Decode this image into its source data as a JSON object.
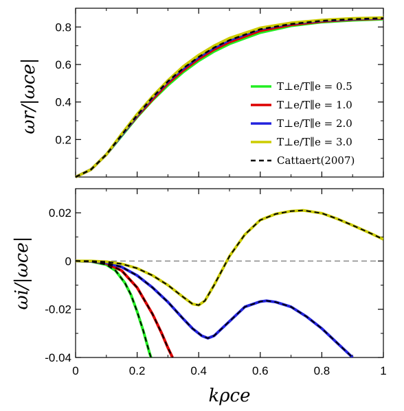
{
  "chart_data": [
    {
      "type": "line",
      "panel": "top",
      "title": "",
      "xlabel": "",
      "ylabel": "ωr/|ωce|",
      "xlim": [
        0,
        1
      ],
      "ylim": [
        0,
        0.9
      ],
      "yticks": [
        0.2,
        0.4,
        0.6,
        0.8
      ],
      "ytick_labels": [
        "0.2",
        "0.4",
        "0.6",
        "0.8"
      ],
      "x": [
        0,
        0.05,
        0.1,
        0.15,
        0.2,
        0.25,
        0.3,
        0.35,
        0.4,
        0.45,
        0.5,
        0.6,
        0.7,
        0.8,
        0.9,
        1.0
      ],
      "series": [
        {
          "name": "T⊥e/T∥e = 0.5",
          "color": "#22ee22",
          "values": [
            0,
            0.04,
            0.12,
            0.22,
            0.32,
            0.41,
            0.49,
            0.56,
            0.62,
            0.67,
            0.71,
            0.77,
            0.806,
            0.826,
            0.836,
            0.842
          ]
        },
        {
          "name": "T⊥e/T∥e = 1.0",
          "color": "#dd0000",
          "values": [
            0,
            0.04,
            0.12,
            0.225,
            0.325,
            0.415,
            0.5,
            0.57,
            0.63,
            0.68,
            0.72,
            0.78,
            0.812,
            0.83,
            0.84,
            0.845
          ]
        },
        {
          "name": "T⊥e/T∥e = 2.0",
          "color": "#2222dd",
          "values": [
            0,
            0.04,
            0.12,
            0.225,
            0.33,
            0.425,
            0.51,
            0.58,
            0.64,
            0.69,
            0.73,
            0.79,
            0.818,
            0.834,
            0.843,
            0.848
          ]
        },
        {
          "name": "T⊥e/T∥e = 3.0",
          "color": "#cccc00",
          "values": [
            0,
            0.04,
            0.12,
            0.23,
            0.335,
            0.43,
            0.515,
            0.59,
            0.65,
            0.7,
            0.74,
            0.795,
            0.822,
            0.837,
            0.846,
            0.85
          ]
        },
        {
          "name": "Cattaert(2007)",
          "color": "#000000",
          "dashed": true,
          "values": [
            0,
            0.04,
            0.12,
            0.225,
            0.33,
            0.425,
            0.51,
            0.58,
            0.64,
            0.69,
            0.73,
            0.788,
            0.816,
            0.833,
            0.842,
            0.847
          ]
        }
      ],
      "legend": {
        "placement": "lower-right",
        "entries": [
          {
            "label": "T⊥e/T∥e = 0.5",
            "color": "#22ee22"
          },
          {
            "label": "T⊥e/T∥e = 1.0",
            "color": "#dd0000"
          },
          {
            "label": "T⊥e/T∥e = 2.0",
            "color": "#2222dd"
          },
          {
            "label": "T⊥e/T∥e = 3.0",
            "color": "#cccc00"
          },
          {
            "label": "Cattaert(2007)",
            "color": "#000000",
            "dashed": true
          }
        ]
      },
      "grid": false
    },
    {
      "type": "line",
      "panel": "bottom",
      "title": "",
      "xlabel": "kρce",
      "ylabel": "ωi/|ωce|",
      "xlim": [
        0,
        1
      ],
      "ylim": [
        -0.04,
        0.03
      ],
      "xticks": [
        0,
        0.2,
        0.4,
        0.6,
        0.8,
        1
      ],
      "xtick_labels": [
        "0",
        "0.2",
        "0.4",
        "0.6",
        "0.8",
        "1"
      ],
      "yticks": [
        -0.04,
        -0.02,
        0,
        0.02
      ],
      "ytick_labels": [
        "-0.04",
        "-0.02",
        "0",
        "0.02"
      ],
      "reference_line": {
        "y": 0,
        "style": "dashed"
      },
      "series": [
        {
          "name": "T⊥e/T∥e = 0.5",
          "color": "#22ee22",
          "x": [
            0,
            0.05,
            0.1,
            0.13,
            0.16,
            0.18,
            0.2,
            0.22,
            0.24,
            0.245
          ],
          "values": [
            0,
            -0.0002,
            -0.0015,
            -0.004,
            -0.009,
            -0.014,
            -0.021,
            -0.029,
            -0.038,
            -0.04
          ]
        },
        {
          "name": "T⊥e/T∥e = 1.0",
          "color": "#dd0000",
          "x": [
            0,
            0.05,
            0.1,
            0.15,
            0.2,
            0.25,
            0.28,
            0.3,
            0.315
          ],
          "values": [
            0,
            -0.0001,
            -0.001,
            -0.004,
            -0.011,
            -0.022,
            -0.03,
            -0.036,
            -0.04
          ]
        },
        {
          "name": "T⊥e/T∥e = 2.0",
          "color": "#2222dd",
          "x": [
            0,
            0.05,
            0.1,
            0.15,
            0.2,
            0.25,
            0.3,
            0.35,
            0.38,
            0.41,
            0.43,
            0.45,
            0.5,
            0.55,
            0.6,
            0.62,
            0.65,
            0.7,
            0.75,
            0.8,
            0.85,
            0.9
          ],
          "values": [
            0,
            -0.0001,
            -0.0007,
            -0.0025,
            -0.006,
            -0.011,
            -0.017,
            -0.024,
            -0.028,
            -0.031,
            -0.032,
            -0.031,
            -0.025,
            -0.019,
            -0.0168,
            -0.0165,
            -0.017,
            -0.019,
            -0.023,
            -0.028,
            -0.034,
            -0.04
          ]
        },
        {
          "name": "T⊥e/T∥e = 3.0",
          "color": "#cccc00",
          "x": [
            0,
            0.05,
            0.1,
            0.15,
            0.2,
            0.25,
            0.3,
            0.35,
            0.38,
            0.4,
            0.42,
            0.45,
            0.5,
            0.55,
            0.6,
            0.65,
            0.7,
            0.74,
            0.8,
            0.85,
            0.9,
            0.95,
            1.0
          ],
          "values": [
            0,
            0,
            -0.0003,
            -0.0012,
            -0.003,
            -0.006,
            -0.01,
            -0.015,
            -0.0178,
            -0.0183,
            -0.0165,
            -0.01,
            0.002,
            0.011,
            0.017,
            0.0195,
            0.0207,
            0.021,
            0.0198,
            0.0175,
            0.0148,
            0.012,
            0.009
          ]
        },
        {
          "name": "Cattaert(2007)",
          "color": "#000000",
          "dashed": true,
          "note_same_as": "overlays each curve"
        }
      ],
      "grid": false
    }
  ]
}
